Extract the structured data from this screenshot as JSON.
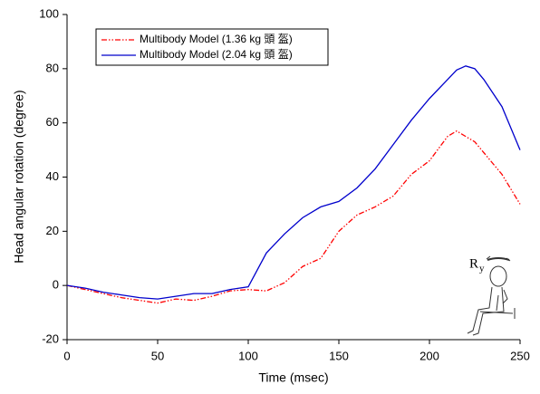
{
  "chart_data": {
    "type": "line",
    "xlabel": "Time (msec)",
    "ylabel": "Head angular rotation (degree)",
    "x": [
      0,
      10,
      20,
      30,
      40,
      50,
      60,
      70,
      80,
      90,
      100,
      110,
      120,
      130,
      140,
      150,
      160,
      170,
      180,
      190,
      200,
      210,
      215,
      220,
      225,
      230,
      240,
      250
    ],
    "series": [
      {
        "name": "Multibody Model (1.36 kg 頭 盔)",
        "color": "#ff0000",
        "dash": true,
        "values": [
          0,
          -1.5,
          -3,
          -4.5,
          -5.5,
          -6.5,
          -5,
          -5.5,
          -4,
          -2,
          -1.5,
          -2,
          1,
          7,
          10,
          20,
          26,
          29,
          33,
          41,
          46,
          55,
          57,
          55,
          53,
          49,
          41,
          30
        ]
      },
      {
        "name": "Multibody Model (2.04 kg 頭 盔)",
        "color": "#0000cc",
        "dash": false,
        "values": [
          0,
          -1,
          -2.5,
          -3.5,
          -4.5,
          -5,
          -4,
          -3,
          -3,
          -1.5,
          -0.5,
          12,
          19,
          25,
          29,
          31,
          36,
          43,
          52,
          61,
          69,
          76,
          79.5,
          81,
          80,
          76,
          66,
          50
        ]
      }
    ],
    "xlim": [
      0,
      250
    ],
    "xticks": [
      0,
      50,
      100,
      150,
      200,
      250
    ],
    "ylim": [
      -20,
      100
    ],
    "yticks": [
      -20,
      0,
      20,
      40,
      60,
      80,
      100
    ],
    "legend": "upper left",
    "icon_label": "R",
    "icon_label_sub": "y"
  }
}
